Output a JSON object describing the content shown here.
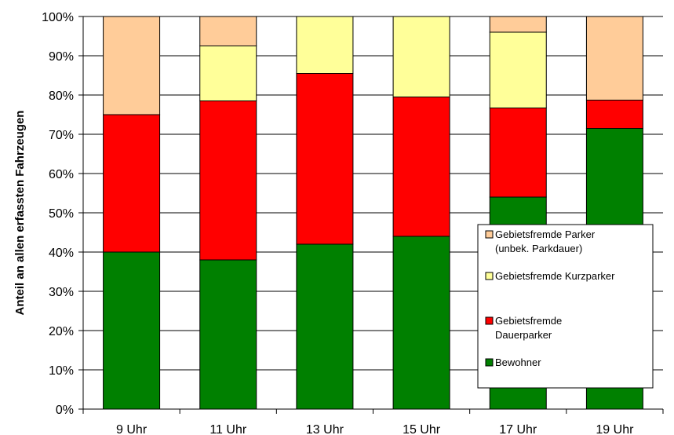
{
  "chart_data": {
    "type": "bar",
    "stacked": true,
    "categories": [
      "9 Uhr",
      "11 Uhr",
      "13 Uhr",
      "15 Uhr",
      "17 Uhr",
      "19 Uhr"
    ],
    "series": [
      {
        "name": "Bewohner",
        "color": "#008000",
        "values": [
          40,
          38,
          42,
          44,
          54,
          71.5
        ]
      },
      {
        "name": "Gebietsfremde Dauerparker",
        "color": "#ff0000",
        "values": [
          35,
          40.5,
          43.5,
          35.5,
          22.7,
          7.2
        ]
      },
      {
        "name": "Gebietsfremde Kurzparker",
        "color": "#ffff99",
        "values": [
          0,
          14,
          14.5,
          20.5,
          19.3,
          0
        ]
      },
      {
        "name": "Gebietsfremde Parker (unbek. Parkdauer)",
        "color": "#ffcc99",
        "values": [
          25,
          7.5,
          0,
          0,
          4,
          21.3
        ]
      }
    ],
    "ylabel": "Anteil an allen erfassten Fahrzeugen",
    "xlabel": "",
    "ylim": [
      0,
      100
    ],
    "yticks": [
      "0%",
      "10%",
      "20%",
      "30%",
      "40%",
      "50%",
      "60%",
      "70%",
      "80%",
      "90%",
      "100%"
    ],
    "grid": true,
    "legend_position": "lower-right",
    "legend": [
      {
        "lines": [
          "Gebietsfremde Parker",
          "(unbek. Parkdauer)"
        ],
        "series": 3
      },
      {
        "lines": [
          "Gebietsfremde Kurzparker"
        ],
        "series": 2
      },
      {
        "lines": [
          "Gebietsfremde",
          "Dauerparker"
        ],
        "series": 1
      },
      {
        "lines": [
          "Bewohner"
        ],
        "series": 0
      }
    ]
  }
}
